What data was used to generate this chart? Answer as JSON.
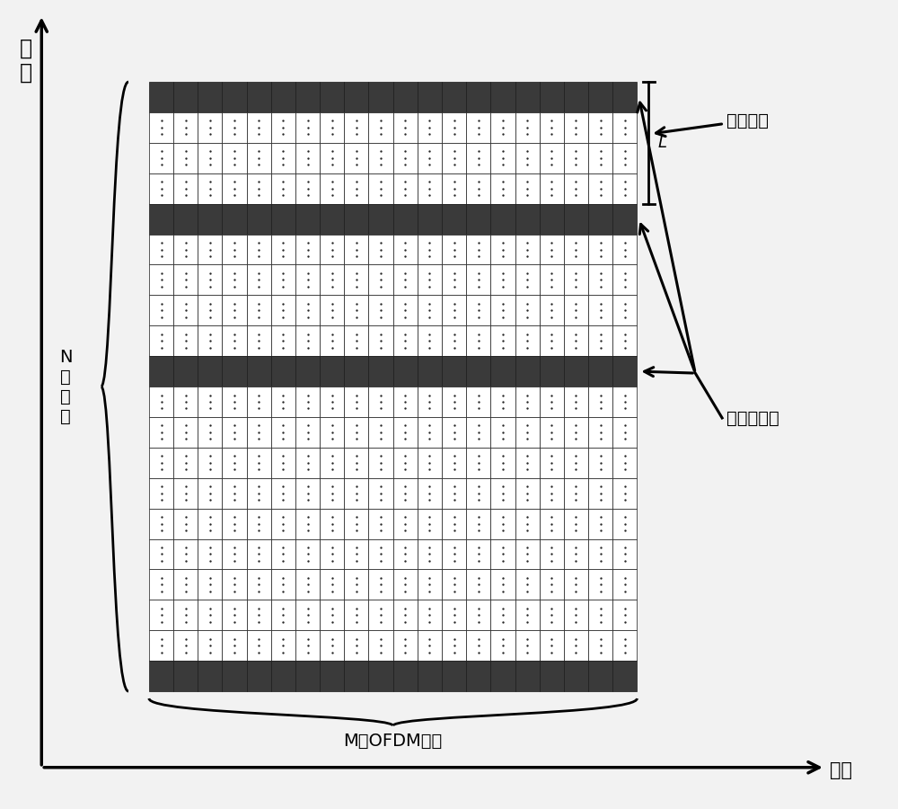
{
  "bg_color": "#f2f2f2",
  "grid_color_dark": "#3a3a3a",
  "grid_color_light": "#ffffff",
  "n_cols": 20,
  "n_rows": 20,
  "pilot_rows": [
    0,
    4,
    9,
    19
  ],
  "freq_label": "频\n率",
  "time_label": "时间",
  "n_carriers_label": "N\n个\n载\n波",
  "m_symbols_label": "M个OFDM符号",
  "pilot_interval_label": "导频间隔",
  "pilot_subcarrier_label": "导频子载波",
  "L_label": "L"
}
